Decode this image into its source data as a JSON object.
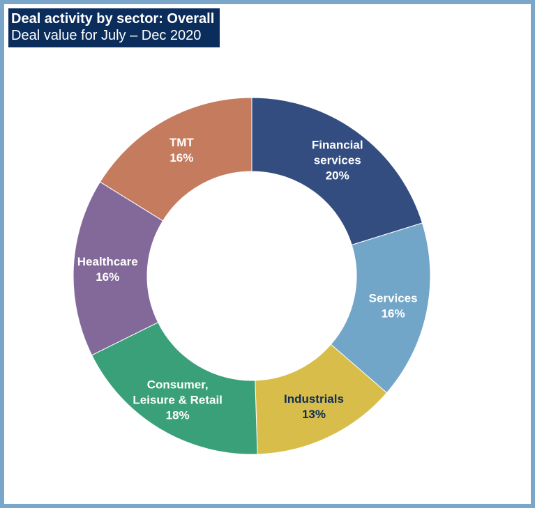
{
  "header": {
    "title": "Deal activity by sector: Overall",
    "subtitle": "Deal value for July  – Dec 2020"
  },
  "colors": {
    "frame_border": "#7aa7c9",
    "title_bg": "#0b2d5b",
    "title_text": "#ffffff",
    "label_light": "#ffffff",
    "label_dark": "#0b2d5b"
  },
  "chart_data": {
    "type": "pie",
    "donut": true,
    "title": "Deal activity by sector: Overall",
    "subtitle": "Deal value for July  – Dec 2020",
    "unit": "%",
    "slices": [
      {
        "name": "Financial services",
        "label_lines": [
          "Financial",
          "services"
        ],
        "value": 20,
        "value_label": "20%",
        "color": "#334d80",
        "label_color": "#ffffff"
      },
      {
        "name": "Services",
        "label_lines": [
          "Services"
        ],
        "value": 16,
        "value_label": "16%",
        "color": "#72a6c8",
        "label_color": "#ffffff"
      },
      {
        "name": "Industrials",
        "label_lines": [
          "Industrials"
        ],
        "value": 13,
        "value_label": "13%",
        "color": "#d9bd4a",
        "label_color": "#0b2d5b"
      },
      {
        "name": "Consumer, Leisure & Retail",
        "label_lines": [
          "Consumer,",
          "Leisure & Retail"
        ],
        "value": 18,
        "value_label": "18%",
        "color": "#3aa07a",
        "label_color": "#ffffff"
      },
      {
        "name": "Healthcare",
        "label_lines": [
          "Healthcare"
        ],
        "value": 16,
        "value_label": "16%",
        "color": "#83699a",
        "label_color": "#ffffff"
      },
      {
        "name": "TMT",
        "label_lines": [
          "TMT"
        ],
        "value": 16,
        "value_label": "16%",
        "color": "#c47b5e",
        "label_color": "#ffffff"
      }
    ]
  }
}
